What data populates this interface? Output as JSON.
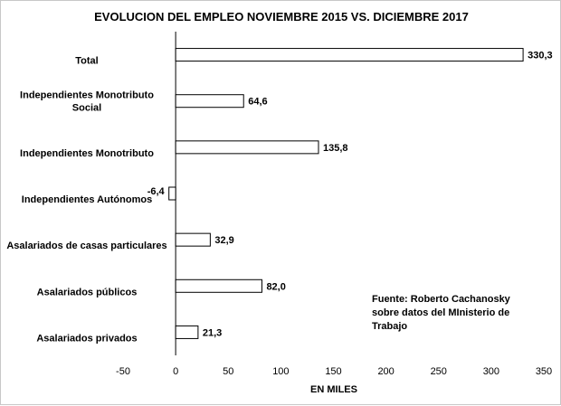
{
  "chart_data": {
    "type": "bar",
    "orientation": "horizontal",
    "title": "EVOLUCION DEL EMPLEO NOVIEMBRE 2015 VS. DICIEMBRE 2017",
    "xlabel": "EN MILES",
    "ylabel": "",
    "xlim": [
      -50,
      350
    ],
    "xticks": [
      "-50",
      "0",
      "50",
      "100",
      "150",
      "200",
      "250",
      "300",
      "350"
    ],
    "categories": [
      [
        "Total"
      ],
      [
        "Independientes Monotributo",
        "Social"
      ],
      [
        "Independientes Monotributo"
      ],
      [
        "Independientes Autónomos"
      ],
      [
        "Asalariados de casas particulares"
      ],
      [
        "Asalariados públicos"
      ],
      [
        "Asalariados privados"
      ]
    ],
    "values": [
      330.3,
      64.6,
      135.8,
      -6.4,
      32.9,
      82.0,
      21.3
    ],
    "value_labels": [
      "330,3",
      "64,6",
      "135,8",
      "-6,4",
      "32,9",
      "82,0",
      "21,3"
    ],
    "annotation": [
      "Fuente: Roberto Cachanosky",
      "sobre datos del MInisterio de",
      "Trabajo"
    ],
    "bar_fill": "#ffffff",
    "bar_stroke": "#000000",
    "grid": false
  }
}
